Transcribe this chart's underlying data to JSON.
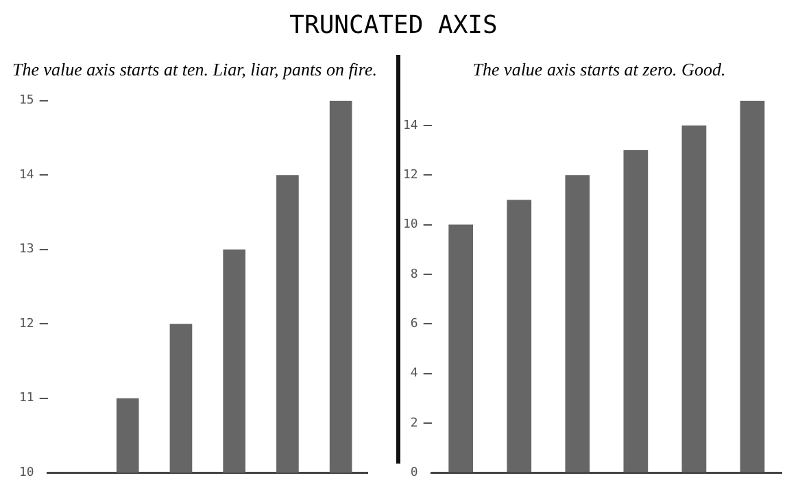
{
  "chart_data": [
    {
      "type": "bar",
      "title": "TRUNCATED AXIS",
      "subtitle": "The value axis starts at ten. Liar, liar, pants on fire.",
      "categories": [
        null,
        null,
        null,
        null,
        null,
        null
      ],
      "values": [
        10,
        11,
        12,
        13,
        14,
        15
      ],
      "color": "#666666",
      "ylim": [
        10,
        15
      ],
      "yticks": [
        10,
        11,
        12,
        13,
        14,
        15
      ],
      "grid": false,
      "legend": false
    },
    {
      "type": "bar",
      "subtitle": "The value axis starts at zero. Good.",
      "categories": [
        null,
        null,
        null,
        null,
        null,
        null
      ],
      "values": [
        10,
        11,
        12,
        13,
        14,
        15
      ],
      "color": "#666666",
      "ylim": [
        0,
        15
      ],
      "yticks": [
        0,
        2,
        4,
        6,
        8,
        10,
        12,
        14
      ],
      "grid": false,
      "legend": false
    }
  ]
}
